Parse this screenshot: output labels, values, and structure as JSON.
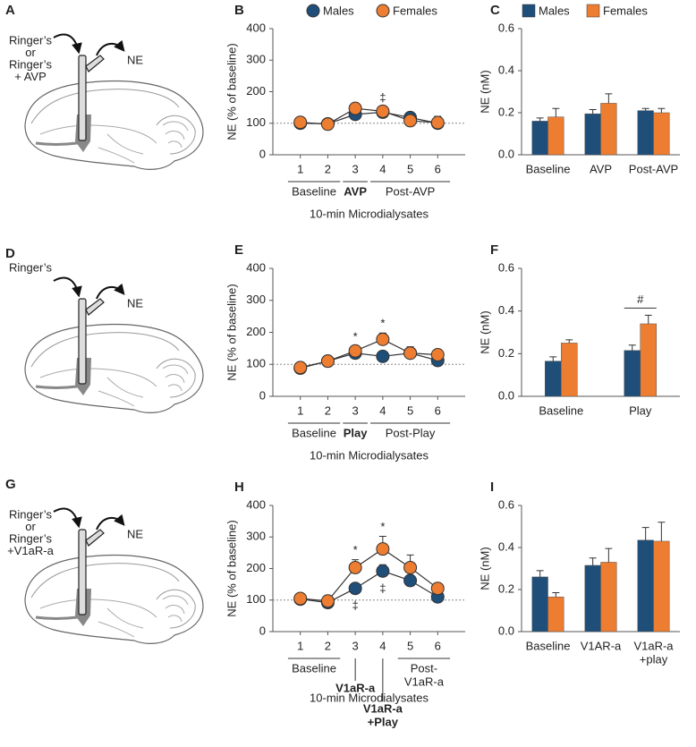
{
  "chart_data": [
    {
      "panel": "B",
      "type": "line",
      "y_label": "NE (% of baseline)",
      "x_label": "10-min Microdialysates",
      "categories": [
        "1",
        "2",
        "3",
        "4",
        "5",
        "6"
      ],
      "series": [
        {
          "name": "Males",
          "color": "#1f4e79",
          "values": [
            100,
            98,
            128,
            135,
            118,
            100
          ],
          "errors": [
            5,
            5,
            10,
            10,
            8,
            10
          ]
        },
        {
          "name": "Females",
          "color": "#ed7d31",
          "values": [
            103,
            97,
            147,
            138,
            108,
            102
          ],
          "errors": [
            8,
            5,
            15,
            12,
            10,
            20
          ]
        }
      ],
      "ylim": [
        0,
        400
      ],
      "yticks": [
        0,
        100,
        200,
        300,
        400
      ],
      "reference_line": 100,
      "legend": "top",
      "groups": [
        {
          "text": "Baseline",
          "from": 0,
          "to": 1
        },
        {
          "text": "AVP",
          "from": 2,
          "to": 2,
          "bold": true
        },
        {
          "text": "Post-AVP",
          "from": 3,
          "to": 5
        }
      ],
      "annotations": [
        {
          "text": "‡",
          "index": 3,
          "series": 1,
          "side": "above"
        }
      ]
    },
    {
      "panel": "C",
      "type": "bar",
      "y_label": "NE (nM)",
      "categories": [
        "Baseline",
        "AVP",
        "Post-AVP"
      ],
      "series": [
        {
          "name": "Males",
          "color": "#1f4e79",
          "values": [
            0.16,
            0.195,
            0.21
          ],
          "errors": [
            0.015,
            0.02,
            0.01
          ]
        },
        {
          "name": "Females",
          "color": "#ed7d31",
          "values": [
            0.18,
            0.245,
            0.2
          ],
          "errors": [
            0.04,
            0.045,
            0.02
          ]
        }
      ],
      "ylim": [
        0,
        0.6
      ],
      "yticks": [
        {
          "value": 0,
          "label": "0.0"
        },
        0.2,
        0.4,
        0.6
      ],
      "legend": "top"
    },
    {
      "panel": "E",
      "type": "line",
      "y_label": "NE (% of baseline)",
      "x_label": "10-min Microdialysates",
      "categories": [
        "1",
        "2",
        "3",
        "4",
        "5",
        "6"
      ],
      "series": [
        {
          "color": "#1f4e79",
          "values": [
            88,
            110,
            135,
            125,
            135,
            112
          ],
          "errors": [
            5,
            5,
            10,
            15,
            15,
            10
          ]
        },
        {
          "color": "#ed7d31",
          "values": [
            90,
            110,
            142,
            178,
            135,
            130
          ],
          "errors": [
            5,
            5,
            15,
            20,
            20,
            15
          ]
        }
      ],
      "ylim": [
        0,
        400
      ],
      "yticks": [
        0,
        100,
        200,
        300,
        400
      ],
      "reference_line": 100,
      "groups": [
        {
          "text": "Baseline",
          "from": 0,
          "to": 1
        },
        {
          "text": "Play",
          "from": 2,
          "to": 2,
          "bold": true
        },
        {
          "text": "Post-Play",
          "from": 3,
          "to": 5
        }
      ],
      "annotations": [
        {
          "text": "*",
          "index": 2,
          "series": 1,
          "side": "above"
        },
        {
          "text": "*",
          "index": 3,
          "series": 1,
          "side": "above"
        }
      ]
    },
    {
      "panel": "F",
      "type": "bar",
      "y_label": "NE (nM)",
      "categories": [
        "Baseline",
        "Play"
      ],
      "series": [
        {
          "color": "#1f4e79",
          "values": [
            0.165,
            0.215
          ],
          "errors": [
            0.02,
            0.025
          ]
        },
        {
          "color": "#ed7d31",
          "values": [
            0.25,
            0.34
          ],
          "errors": [
            0.015,
            0.04
          ]
        }
      ],
      "ylim": [
        0,
        0.6
      ],
      "yticks": [
        {
          "value": 0,
          "label": "0.0"
        },
        0.2,
        0.4,
        0.6
      ],
      "annotations": [
        {
          "text": "#",
          "index": 1,
          "bracket": true
        }
      ]
    },
    {
      "panel": "H",
      "type": "line",
      "y_label": "NE (% of baseline)",
      "x_label": "10-min Microdialysates",
      "categories": [
        "1",
        "2",
        "3",
        "4",
        "5",
        "6"
      ],
      "series": [
        {
          "color": "#1f4e79",
          "values": [
            103,
            92,
            137,
            192,
            162,
            110
          ],
          "errors": [
            8,
            5,
            12,
            20,
            15,
            8
          ]
        },
        {
          "color": "#ed7d31",
          "values": [
            105,
            97,
            203,
            262,
            203,
            137
          ],
          "errors": [
            8,
            5,
            25,
            40,
            40,
            10
          ]
        }
      ],
      "ylim": [
        0,
        400
      ],
      "yticks": [
        0,
        100,
        200,
        300,
        400
      ],
      "reference_line": 100,
      "groups": [
        {
          "text": "Baseline",
          "from": 0,
          "to": 1
        },
        {
          "text": "V1aR-a",
          "from": 2,
          "to": 2,
          "bold": true
        },
        {
          "text": [
            "V1aR-a",
            "+Play"
          ],
          "from": 3,
          "to": 3,
          "bold": true
        },
        {
          "text": [
            "Post-",
            "V1aR-a"
          ],
          "from": 4,
          "to": 5
        }
      ],
      "annotations": [
        {
          "text": "*",
          "index": 2,
          "series": 1,
          "side": "above"
        },
        {
          "text": "*",
          "index": 3,
          "series": 1,
          "side": "above"
        },
        {
          "text": "‡",
          "index": 2,
          "series": 0,
          "side": "below"
        },
        {
          "text": "‡",
          "index": 3,
          "series": 0,
          "side": "below"
        }
      ]
    },
    {
      "panel": "I",
      "type": "bar",
      "y_label": "NE (nM)",
      "categories": [
        "Baseline",
        "V1AR-a",
        [
          "V1aR-a",
          "+play"
        ]
      ],
      "series": [
        {
          "color": "#1f4e79",
          "values": [
            0.26,
            0.315,
            0.435
          ],
          "errors": [
            0.03,
            0.035,
            0.06
          ]
        },
        {
          "color": "#ed7d31",
          "values": [
            0.165,
            0.33,
            0.43
          ],
          "errors": [
            0.02,
            0.065,
            0.09
          ]
        }
      ],
      "ylim": [
        0,
        0.6
      ],
      "yticks": [
        {
          "value": 0,
          "label": "0.0"
        },
        0.2,
        0.4,
        0.6
      ]
    }
  ],
  "diagrams": [
    {
      "panel": "A",
      "infusion": [
        "Ringer’s",
        "or",
        "Ringer’s",
        "+ AVP"
      ],
      "output": "NE"
    },
    {
      "panel": "D",
      "infusion": [
        "Ringer’s"
      ],
      "output": "NE"
    },
    {
      "panel": "G",
      "infusion": [
        "Ringer’s",
        "or",
        "Ringer’s",
        "+V1aR-a"
      ],
      "output": "NE"
    }
  ]
}
